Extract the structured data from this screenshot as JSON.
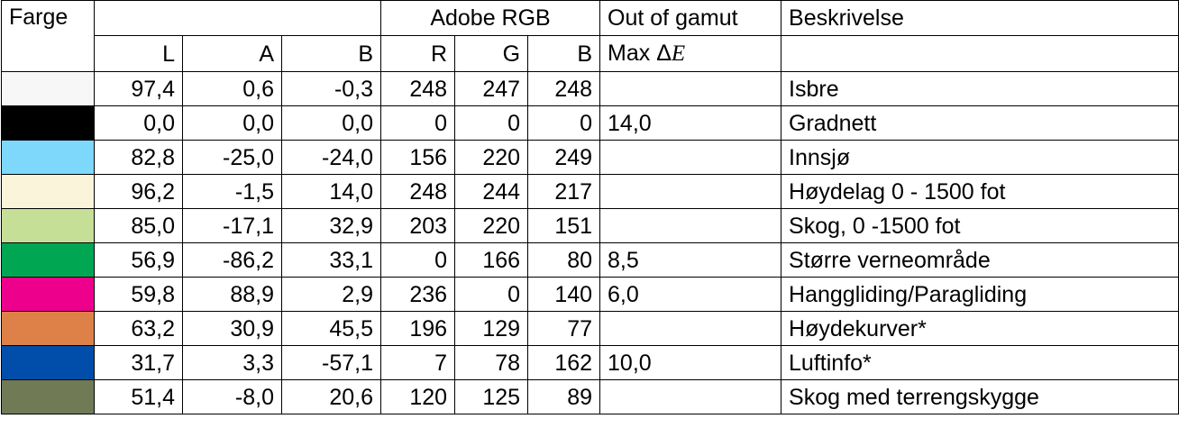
{
  "header": {
    "farge": "Farge",
    "adobe_rgb": "Adobe RGB",
    "out_of_gamut": "Out of gamut",
    "beskrivelse": "Beskrivelse",
    "l": "L",
    "a": "A",
    "b": "B",
    "r": "R",
    "g": "G",
    "b2": "B",
    "max_delta_prefix": "Max Δ",
    "max_delta_e": "E"
  },
  "rows": [
    {
      "swatch": "#f8f7f8",
      "L": "97,4",
      "A": "0,6",
      "B": "-0,3",
      "R": "248",
      "G": "247",
      "Bv": "248",
      "gamut": "",
      "desc": "Isbre"
    },
    {
      "swatch": "#000000",
      "L": "0,0",
      "A": "0,0",
      "B": "0,0",
      "R": "0",
      "G": "0",
      "Bv": "0",
      "gamut": "14,0",
      "desc": "Gradnett"
    },
    {
      "swatch": "#7dd8fb",
      "L": "82,8",
      "A": "-25,0",
      "B": "-24,0",
      "R": "156",
      "G": "220",
      "Bv": "249",
      "gamut": "",
      "desc": "Innsjø"
    },
    {
      "swatch": "#faf4db",
      "L": "96,2",
      "A": "-1,5",
      "B": "14,0",
      "R": "248",
      "G": "244",
      "Bv": "217",
      "gamut": "",
      "desc": "Høydelag 0 - 1500 fot"
    },
    {
      "swatch": "#c6df97",
      "L": "85,0",
      "A": "-17,1",
      "B": "32,9",
      "R": "203",
      "G": "220",
      "Bv": "151",
      "gamut": "",
      "desc": "Skog, 0 -1500 fot"
    },
    {
      "swatch": "#00a651",
      "L": "56,9",
      "A": "-86,2",
      "B": "33,1",
      "R": "0",
      "G": "166",
      "Bv": "80",
      "gamut": "8,5",
      "desc": "Større verneområde"
    },
    {
      "swatch": "#ec008c",
      "L": "59,8",
      "A": "88,9",
      "B": "2,9",
      "R": "236",
      "G": "0",
      "Bv": "140",
      "gamut": "6,0",
      "desc": "Hanggliding/Paragliding"
    },
    {
      "swatch": "#de8148",
      "L": "63,2",
      "A": "30,9",
      "B": "45,5",
      "R": "196",
      "G": "129",
      "Bv": "77",
      "gamut": "",
      "desc": "Høydekurver*"
    },
    {
      "swatch": "#004ea9",
      "L": "31,7",
      "A": "3,3",
      "B": "-57,1",
      "R": "7",
      "G": "78",
      "Bv": "162",
      "gamut": "10,0",
      "desc": "Luftinfo*"
    },
    {
      "swatch": "#707b56",
      "L": "51,4",
      "A": "-8,0",
      "B": "20,6",
      "R": "120",
      "G": "125",
      "Bv": "89",
      "gamut": "",
      "desc": "Skog med terrengskygge"
    }
  ]
}
